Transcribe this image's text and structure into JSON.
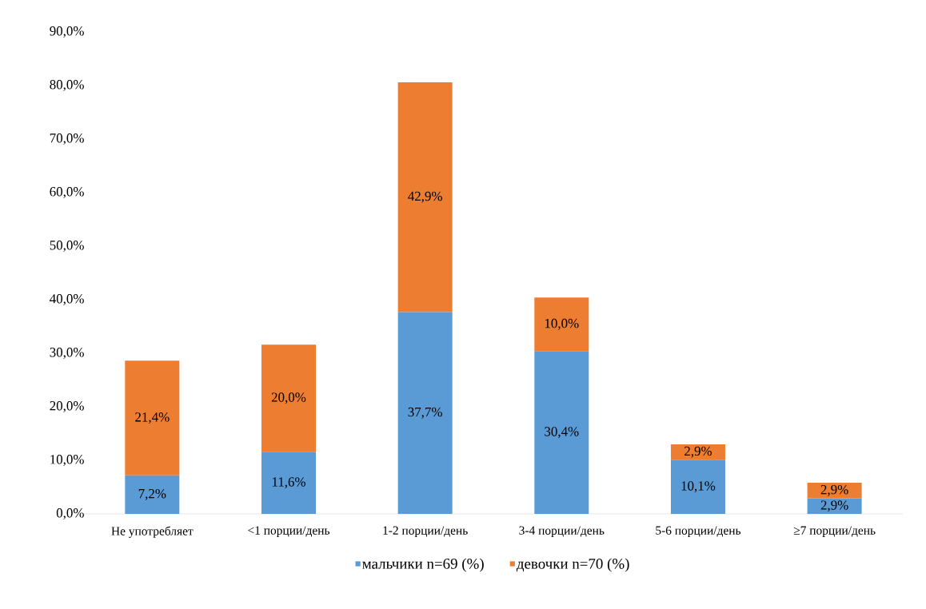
{
  "chart_data": {
    "type": "bar",
    "stacked": true,
    "categories": [
      "Не употребляет",
      "<1 порции/день",
      "1-2 порции/день",
      "3-4 порции/день",
      "5-6 порции/день",
      "≥7 порции/день"
    ],
    "series": [
      {
        "name": "мальчики n=69 (%)",
        "color": "#5b9bd5",
        "values": [
          7.2,
          11.6,
          37.7,
          30.4,
          10.1,
          2.9
        ],
        "value_labels": [
          "7,2%",
          "11,6%",
          "37,7%",
          "30,4%",
          "10,1%",
          "2,9%"
        ]
      },
      {
        "name": "девочки n=70 (%)",
        "color": "#ed7d31",
        "values": [
          21.4,
          20.0,
          42.9,
          10.0,
          2.9,
          2.9
        ],
        "value_labels": [
          "21,4%",
          "20,0%",
          "42,9%",
          "10,0%",
          "2,9%",
          "2,9%"
        ]
      }
    ],
    "ylim": [
      0,
      90
    ],
    "yticks": [
      {
        "value": 0,
        "label": "0,0%"
      },
      {
        "value": 10,
        "label": "10,0%"
      },
      {
        "value": 20,
        "label": "20,0%"
      },
      {
        "value": 30,
        "label": "30,0%"
      },
      {
        "value": 40,
        "label": "40,0%"
      },
      {
        "value": 50,
        "label": "50,0%"
      },
      {
        "value": 60,
        "label": "60,0%"
      },
      {
        "value": 70,
        "label": "70,0%"
      },
      {
        "value": 80,
        "label": "80,0%"
      },
      {
        "value": 90,
        "label": "90,0%"
      }
    ],
    "grid": false,
    "legend": "bottom"
  }
}
